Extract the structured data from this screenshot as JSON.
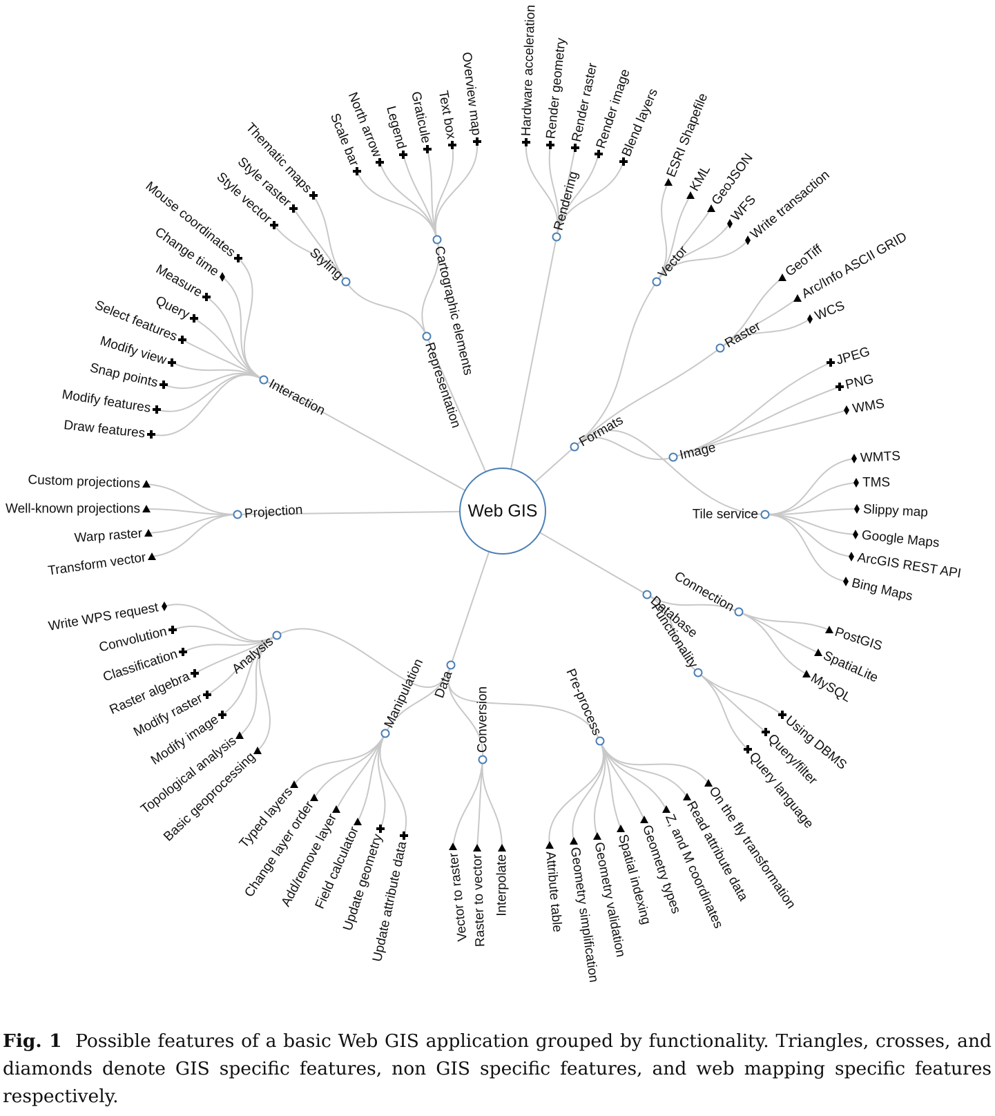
{
  "center": "Web GIS",
  "colors": {
    "link": "#c8c8c8",
    "node": "#4a7fb5",
    "text": "#111111",
    "marker": "#000000"
  },
  "marker_legend": {
    "triangle": "GIS specific",
    "cross": "non GIS specific",
    "diamond": "web mapping specific"
  },
  "groups": [
    {
      "name": "Representation",
      "subgroups": [
        {
          "name": "Styling",
          "leaves": [
            {
              "label": "Style vector",
              "marker": "cross"
            },
            {
              "label": "Style raster",
              "marker": "cross"
            },
            {
              "label": "Thematic maps",
              "marker": "cross"
            }
          ]
        },
        {
          "name": "Cartographic elements",
          "leaves": [
            {
              "label": "Scale bar",
              "marker": "cross"
            },
            {
              "label": "North arrow",
              "marker": "cross"
            },
            {
              "label": "Legend",
              "marker": "cross"
            },
            {
              "label": "Graticule",
              "marker": "cross"
            },
            {
              "label": "Text box",
              "marker": "cross"
            },
            {
              "label": "Overview map",
              "marker": "cross"
            }
          ]
        }
      ]
    },
    {
      "name": "Rendering",
      "leaves": [
        {
          "label": "Hardware acceleration",
          "marker": "cross"
        },
        {
          "label": "Render geometry",
          "marker": "cross"
        },
        {
          "label": "Render raster",
          "marker": "cross"
        },
        {
          "label": "Render image",
          "marker": "cross"
        },
        {
          "label": "Blend layers",
          "marker": "cross"
        }
      ]
    },
    {
      "name": "Formats",
      "subgroups": [
        {
          "name": "Vector",
          "leaves": [
            {
              "label": "ESRI Shapefile",
              "marker": "triangle"
            },
            {
              "label": "KML",
              "marker": "triangle"
            },
            {
              "label": "GeoJSON",
              "marker": "triangle"
            },
            {
              "label": "WFS",
              "marker": "diamond"
            },
            {
              "label": "Write transaction",
              "marker": "diamond"
            }
          ]
        },
        {
          "name": "Raster",
          "leaves": [
            {
              "label": "GeoTiff",
              "marker": "triangle"
            },
            {
              "label": "Arc/Info ASCII GRID",
              "marker": "triangle"
            },
            {
              "label": "WCS",
              "marker": "diamond"
            }
          ]
        },
        {
          "name": "Image",
          "leaves": [
            {
              "label": "JPEG",
              "marker": "cross"
            },
            {
              "label": "PNG",
              "marker": "cross"
            },
            {
              "label": "WMS",
              "marker": "diamond"
            }
          ]
        },
        {
          "name": "Tile service",
          "leaves": [
            {
              "label": "WMTS",
              "marker": "diamond"
            },
            {
              "label": "TMS",
              "marker": "diamond"
            },
            {
              "label": "Slippy map",
              "marker": "diamond"
            },
            {
              "label": "Google Maps",
              "marker": "diamond"
            },
            {
              "label": "ArcGIS REST API",
              "marker": "diamond"
            },
            {
              "label": "Bing Maps",
              "marker": "diamond"
            }
          ]
        }
      ]
    },
    {
      "name": "Database",
      "subgroups": [
        {
          "name": "Connection",
          "leaves": [
            {
              "label": "PostGIS",
              "marker": "triangle"
            },
            {
              "label": "SpatiaLite",
              "marker": "triangle"
            },
            {
              "label": "MySQL",
              "marker": "triangle"
            }
          ]
        },
        {
          "name": "Functionality",
          "leaves": [
            {
              "label": "Using DBMS",
              "marker": "cross"
            },
            {
              "label": "Query/filter",
              "marker": "cross"
            },
            {
              "label": "Query language",
              "marker": "cross"
            }
          ]
        }
      ]
    },
    {
      "name": "Data",
      "subgroups": [
        {
          "name": "Pre-process",
          "leaves": [
            {
              "label": "On the fly transformation",
              "marker": "triangle"
            },
            {
              "label": "Read attribute data",
              "marker": "triangle"
            },
            {
              "label": "Z, and M coordinates",
              "marker": "triangle"
            },
            {
              "label": "Geometry types",
              "marker": "triangle"
            },
            {
              "label": "Spatial indexing",
              "marker": "triangle"
            },
            {
              "label": "Geometry validation",
              "marker": "triangle"
            },
            {
              "label": "Geometry simplification",
              "marker": "triangle"
            },
            {
              "label": "Attribute table",
              "marker": "triangle"
            }
          ]
        },
        {
          "name": "Conversion",
          "leaves": [
            {
              "label": "Interpolate",
              "marker": "triangle"
            },
            {
              "label": "Raster to vector",
              "marker": "triangle"
            },
            {
              "label": "Vector to raster",
              "marker": "triangle"
            }
          ]
        },
        {
          "name": "Manipulation",
          "leaves": [
            {
              "label": "Update attribute data",
              "marker": "cross"
            },
            {
              "label": "Update geometry",
              "marker": "cross"
            },
            {
              "label": "Field calculator",
              "marker": "triangle"
            },
            {
              "label": "Add/remove layer",
              "marker": "triangle"
            },
            {
              "label": "Change layer order",
              "marker": "triangle"
            },
            {
              "label": "Typed layers",
              "marker": "triangle"
            }
          ]
        },
        {
          "name": "Analysis",
          "leaves": [
            {
              "label": "Basic geoprocessing",
              "marker": "triangle"
            },
            {
              "label": "Topological analysis",
              "marker": "triangle"
            },
            {
              "label": "Modify image",
              "marker": "cross"
            },
            {
              "label": "Modify raster",
              "marker": "cross"
            },
            {
              "label": "Raster algebra",
              "marker": "cross"
            },
            {
              "label": "Classification",
              "marker": "cross"
            },
            {
              "label": "Convolution",
              "marker": "cross"
            },
            {
              "label": "Write WPS request",
              "marker": "diamond"
            }
          ]
        }
      ]
    },
    {
      "name": "Projection",
      "leaves": [
        {
          "label": "Transform vector",
          "marker": "triangle"
        },
        {
          "label": "Warp raster",
          "marker": "triangle"
        },
        {
          "label": "Well-known projections",
          "marker": "triangle"
        },
        {
          "label": "Custom projections",
          "marker": "triangle"
        }
      ]
    },
    {
      "name": "Interaction",
      "leaves": [
        {
          "label": "Draw features",
          "marker": "cross"
        },
        {
          "label": "Modify features",
          "marker": "cross"
        },
        {
          "label": "Snap points",
          "marker": "cross"
        },
        {
          "label": "Modify view",
          "marker": "cross"
        },
        {
          "label": "Select features",
          "marker": "cross"
        },
        {
          "label": "Query",
          "marker": "cross"
        },
        {
          "label": "Measure",
          "marker": "cross"
        },
        {
          "label": "Change time",
          "marker": "diamond"
        },
        {
          "label": "Mouse coordinates",
          "marker": "cross"
        }
      ]
    }
  ],
  "caption": {
    "label": "Fig. 1",
    "text": "Possible features of a basic Web GIS application grouped by functionality. Triangles, crosses, and diamonds denote GIS specific features, non GIS specific features, and web mapping specific features respectively."
  }
}
